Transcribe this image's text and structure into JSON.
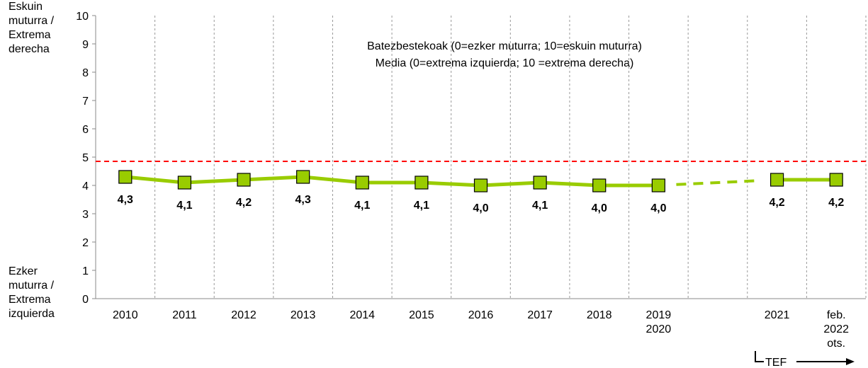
{
  "chart_data": {
    "type": "line",
    "title_lines": [
      "Batezbestekoak (0=ezker muturra; 10=eskuin muturra)",
      "Media (0=extrema izquierda; 10 =extrema derecha)"
    ],
    "y_label_top": "Eskuin\nmuturra /\nExtrema\nderecha",
    "y_label_bottom": "Ezker\nmuturra /\nExtrema\nizquierda",
    "categories": [
      "2010",
      "2011",
      "2012",
      "2013",
      "2014",
      "2015",
      "2016",
      "2017",
      "2018",
      "2019\n2020",
      null,
      "2021",
      "feb.\n2022\nots."
    ],
    "series": [
      {
        "color": "#99cc00",
        "marker_color": "#99cc00",
        "values": [
          4.3,
          4.1,
          4.2,
          4.3,
          4.1,
          4.1,
          4.0,
          4.1,
          4.0,
          4.0,
          null,
          4.2,
          4.2
        ],
        "value_labels": [
          "4,3",
          "4,1",
          "4,2",
          "4,3",
          "4,1",
          "4,1",
          "4,0",
          "4,1",
          "4,0",
          "4,0",
          null,
          "4,2",
          "4,2"
        ]
      }
    ],
    "ylim": [
      0,
      10
    ],
    "yticks": [
      0,
      1,
      2,
      3,
      4,
      5,
      6,
      7,
      8,
      9,
      10
    ],
    "reference_line": {
      "value": 4.85,
      "color": "#ff0000"
    },
    "annotation": "TEF"
  }
}
